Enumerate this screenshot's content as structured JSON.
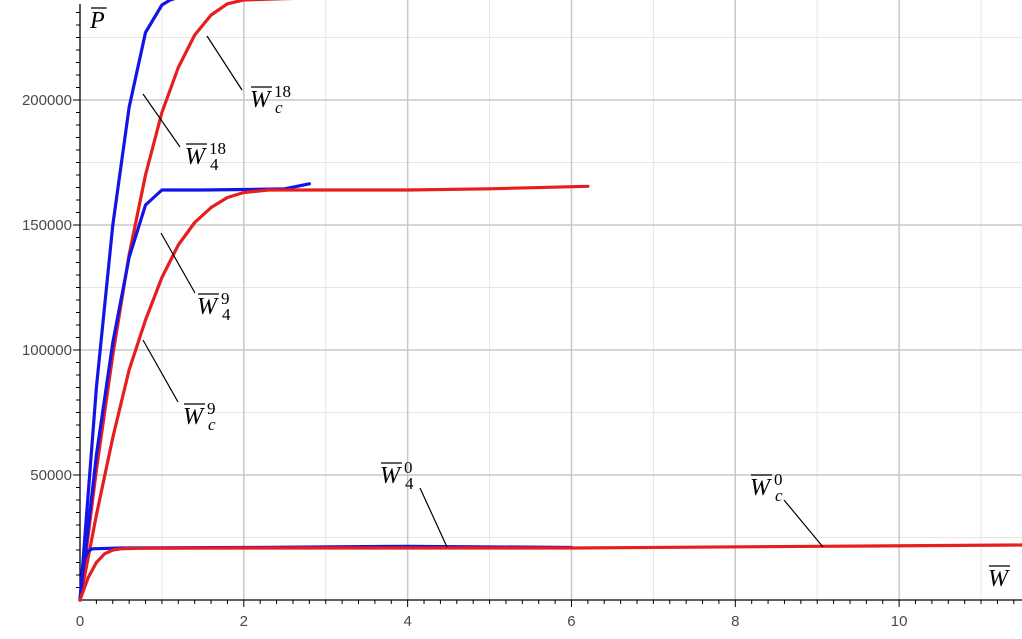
{
  "chart_data": {
    "type": "line",
    "xlim": [
      0,
      11.5
    ],
    "ylim": [
      0,
      240000
    ],
    "x_ticks": [
      0,
      2,
      4,
      6,
      8,
      10
    ],
    "y_ticks": [
      50000,
      100000,
      150000,
      200000
    ],
    "x_tick_labels": [
      "0",
      "2",
      "4",
      "6",
      "8",
      "10"
    ],
    "y_tick_labels": [
      "50000",
      "100000",
      "150000",
      "200000"
    ],
    "xlabel": "W",
    "ylabel": "P",
    "grid": true,
    "colors": {
      "blue": "#1414e6",
      "red": "#e61e1e",
      "grid": "#c8c8c8",
      "minor_grid": "#e6e6e6"
    },
    "series": [
      {
        "color": "blue",
        "x": [
          0,
          0.2,
          0.4,
          0.6,
          0.8,
          1.0,
          1.1,
          1.2,
          1.5,
          2.0,
          2.7
        ],
        "y": [
          0,
          85000,
          150000,
          197000,
          227000,
          238000,
          240000,
          241000,
          241000,
          241300,
          242000
        ]
      },
      {
        "color": "red",
        "x": [
          0,
          0.2,
          0.4,
          0.6,
          0.8,
          1.0,
          1.2,
          1.4,
          1.6,
          1.8,
          2.0,
          2.5,
          3.0,
          4.0,
          5.5
        ],
        "y": [
          0,
          52000,
          98000,
          138000,
          170000,
          195000,
          213000,
          226000,
          234000,
          238500,
          240000,
          240500,
          241000,
          241500,
          242500
        ]
      },
      {
        "color": "blue",
        "x": [
          0,
          0.2,
          0.4,
          0.6,
          0.8,
          1.0,
          1.2,
          1.5,
          2.0,
          2.5,
          2.8
        ],
        "y": [
          0,
          58000,
          103000,
          137000,
          158000,
          164000,
          164000,
          164000,
          164200,
          164500,
          166500
        ]
      },
      {
        "color": "red",
        "x": [
          0,
          0.2,
          0.4,
          0.6,
          0.8,
          1.0,
          1.2,
          1.4,
          1.6,
          1.8,
          2.0,
          2.3,
          3.0,
          4.0,
          5.0,
          6.2
        ],
        "y": [
          0,
          34000,
          65000,
          92000,
          112000,
          129000,
          142000,
          151000,
          157000,
          161000,
          163000,
          164000,
          164000,
          164000,
          164500,
          165500
        ]
      },
      {
        "color": "blue",
        "x": [
          0,
          0.05,
          0.1,
          0.15,
          0.5,
          2.0,
          4.0,
          6.0
        ],
        "y": [
          0,
          16000,
          19500,
          20500,
          20800,
          21000,
          21500,
          21000
        ]
      },
      {
        "color": "red",
        "x": [
          0,
          0.1,
          0.2,
          0.3,
          0.4,
          0.5,
          0.7,
          2.0,
          6.0,
          9.0,
          11.5
        ],
        "y": [
          0,
          9000,
          15000,
          18500,
          20000,
          20500,
          20700,
          20800,
          20800,
          21500,
          22000
        ]
      }
    ],
    "annotations": [
      {
        "main": "W",
        "sup": "18",
        "sub": "c"
      },
      {
        "main": "W",
        "sup": "18",
        "sub": "4"
      },
      {
        "main": "W",
        "sup": "9",
        "sub": "4"
      },
      {
        "main": "W",
        "sup": "9",
        "sub": "c"
      },
      {
        "main": "W",
        "sup": "0",
        "sub": "4"
      },
      {
        "main": "W",
        "sup": "0",
        "sub": "c"
      }
    ]
  }
}
